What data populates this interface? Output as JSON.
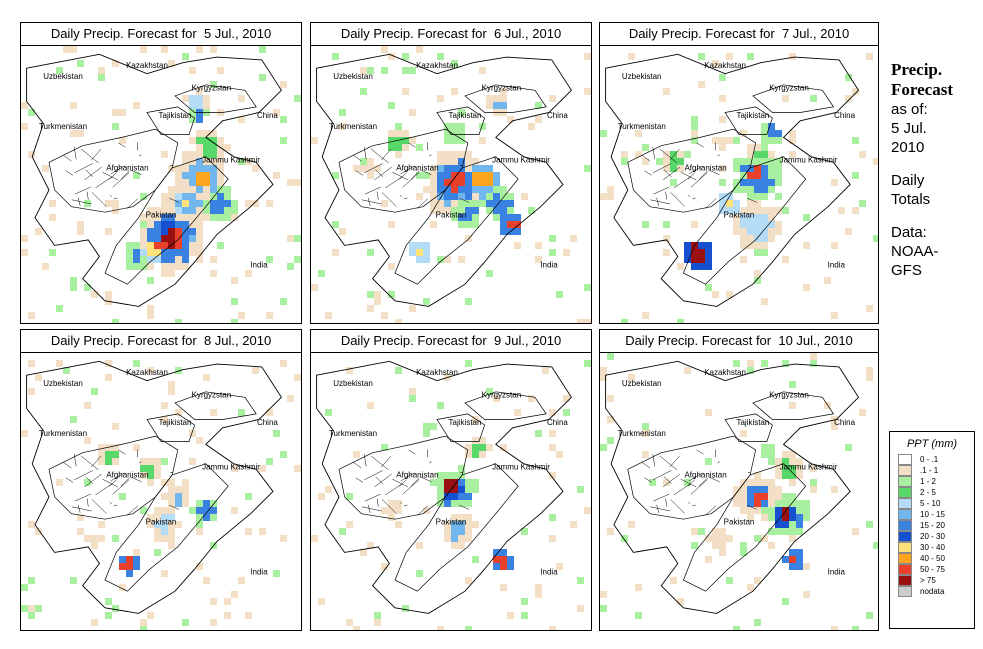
{
  "panels": [
    {
      "title": "Daily Precip. Forecast for  5 Jul., 2010",
      "blobs": [
        {
          "x": 62,
          "y": 18,
          "r": 1.4,
          "l": 4
        },
        {
          "x": 62,
          "y": 23,
          "r": 1.2,
          "l": 6
        },
        {
          "x": 63,
          "y": 45,
          "r": 3,
          "l": 5
        },
        {
          "x": 64,
          "y": 45,
          "r": 1.8,
          "l": 9
        },
        {
          "x": 58,
          "y": 55,
          "r": 2.6,
          "l": 5
        },
        {
          "x": 57,
          "y": 55,
          "r": 1.5,
          "l": 8
        },
        {
          "x": 53,
          "y": 68,
          "r": 4,
          "l": 5
        },
        {
          "x": 52,
          "y": 68,
          "r": 2.8,
          "l": 10
        },
        {
          "x": 52,
          "y": 67,
          "r": 1.6,
          "l": 11
        },
        {
          "x": 46,
          "y": 72,
          "r": 1.3,
          "l": 8
        },
        {
          "x": 40,
          "y": 74,
          "r": 1.4,
          "l": 6
        },
        {
          "x": 70,
          "y": 55,
          "r": 2,
          "l": 6
        },
        {
          "x": 66,
          "y": 35,
          "r": 2.2,
          "l": 3
        },
        {
          "x": 20,
          "y": 30,
          "r": 1.5,
          "l": 1
        },
        {
          "x": 30,
          "y": 55,
          "r": 1.5,
          "l": 1
        }
      ]
    },
    {
      "title": "Daily Precip. Forecast for  6 Jul., 2010",
      "blobs": [
        {
          "x": 66,
          "y": 20,
          "r": 1.5,
          "l": 5
        },
        {
          "x": 50,
          "y": 30,
          "r": 2.5,
          "l": 2
        },
        {
          "x": 50,
          "y": 48,
          "r": 4,
          "l": 5
        },
        {
          "x": 50,
          "y": 47,
          "r": 2.2,
          "l": 10
        },
        {
          "x": 60,
          "y": 47,
          "r": 1.8,
          "l": 9
        },
        {
          "x": 55,
          "y": 58,
          "r": 2,
          "l": 6
        },
        {
          "x": 66,
          "y": 55,
          "r": 2,
          "l": 6
        },
        {
          "x": 70,
          "y": 63,
          "r": 1.5,
          "l": 10
        },
        {
          "x": 38,
          "y": 72,
          "r": 1.3,
          "l": 8
        },
        {
          "x": 40,
          "y": 45,
          "r": 1.5,
          "l": 2
        },
        {
          "x": 20,
          "y": 42,
          "r": 1.8,
          "l": 1
        },
        {
          "x": 30,
          "y": 33,
          "r": 1.6,
          "l": 3
        }
      ]
    },
    {
      "title": "Daily Precip. Forecast for  7 Jul., 2010",
      "blobs": [
        {
          "x": 56,
          "y": 38,
          "r": 1.8,
          "l": 3
        },
        {
          "x": 55,
          "y": 45,
          "r": 3,
          "l": 6
        },
        {
          "x": 54,
          "y": 45,
          "r": 1.4,
          "l": 10
        },
        {
          "x": 45,
          "y": 55,
          "r": 1.3,
          "l": 8
        },
        {
          "x": 55,
          "y": 62,
          "r": 3,
          "l": 4
        },
        {
          "x": 34,
          "y": 73,
          "r": 1.8,
          "l": 11
        },
        {
          "x": 60,
          "y": 30,
          "r": 1.4,
          "l": 6
        },
        {
          "x": 42,
          "y": 33,
          "r": 1.8,
          "l": 1
        },
        {
          "x": 25,
          "y": 40,
          "r": 1.4,
          "l": 3
        }
      ]
    },
    {
      "title": "Daily Precip. Forecast for  8 Jul., 2010",
      "blobs": [
        {
          "x": 45,
          "y": 40,
          "r": 1.6,
          "l": 3
        },
        {
          "x": 55,
          "y": 50,
          "r": 1.6,
          "l": 5
        },
        {
          "x": 50,
          "y": 60,
          "r": 2,
          "l": 4
        },
        {
          "x": 65,
          "y": 55,
          "r": 1.5,
          "l": 6
        },
        {
          "x": 37,
          "y": 74,
          "r": 1.2,
          "l": 10
        },
        {
          "x": 25,
          "y": 65,
          "r": 1.5,
          "l": 1
        },
        {
          "x": 30,
          "y": 35,
          "r": 1.5,
          "l": 3
        }
      ]
    },
    {
      "title": "Daily Precip. Forecast for  9 Jul., 2010",
      "blobs": [
        {
          "x": 49,
          "y": 47,
          "r": 1.3,
          "l": 11
        },
        {
          "x": 50,
          "y": 48,
          "r": 2.6,
          "l": 6
        },
        {
          "x": 58,
          "y": 33,
          "r": 1.5,
          "l": 3
        },
        {
          "x": 52,
          "y": 62,
          "r": 2,
          "l": 5
        },
        {
          "x": 67,
          "y": 73,
          "r": 1.4,
          "l": 10
        },
        {
          "x": 28,
          "y": 55,
          "r": 2,
          "l": 1
        },
        {
          "x": 40,
          "y": 25,
          "r": 1.5,
          "l": 2
        }
      ]
    },
    {
      "title": "Daily Precip. Forecast for  10 Jul., 2010",
      "blobs": [
        {
          "x": 56,
          "y": 50,
          "r": 1.4,
          "l": 10
        },
        {
          "x": 55,
          "y": 50,
          "r": 2.6,
          "l": 5
        },
        {
          "x": 65,
          "y": 57,
          "r": 1.3,
          "l": 11
        },
        {
          "x": 66,
          "y": 57,
          "r": 2.6,
          "l": 6
        },
        {
          "x": 68,
          "y": 73,
          "r": 1.2,
          "l": 10
        },
        {
          "x": 66,
          "y": 40,
          "r": 1.8,
          "l": 3
        },
        {
          "x": 58,
          "y": 35,
          "r": 1.6,
          "l": 2
        },
        {
          "x": 40,
          "y": 65,
          "r": 2,
          "l": 1
        },
        {
          "x": 50,
          "y": 70,
          "r": 1.5,
          "l": 2
        }
      ]
    }
  ],
  "map_labels": [
    {
      "text": "Uzbekistan",
      "x": 15,
      "y": 12
    },
    {
      "text": "Kazakhstan",
      "x": 45,
      "y": 8
    },
    {
      "text": "Kyrgyzstan",
      "x": 68,
      "y": 16
    },
    {
      "text": "Tajikistan",
      "x": 55,
      "y": 26
    },
    {
      "text": "China",
      "x": 88,
      "y": 26
    },
    {
      "text": "Turkmenistan",
      "x": 15,
      "y": 30
    },
    {
      "text": "Jammu Kashmir",
      "x": 75,
      "y": 42
    },
    {
      "text": "Afghanistan",
      "x": 38,
      "y": 45
    },
    {
      "text": "Pakistan",
      "x": 50,
      "y": 62
    },
    {
      "text": "India",
      "x": 85,
      "y": 80
    }
  ],
  "legend": {
    "title": "PPT (mm)",
    "items": [
      {
        "label": "0 - .1",
        "color": "#ffffff"
      },
      {
        "label": ".1 - 1",
        "color": "#f2dfc6"
      },
      {
        "label": "1 - 2",
        "color": "#a8f0a0"
      },
      {
        "label": "2 - 5",
        "color": "#59d86a"
      },
      {
        "label": "5 - 10",
        "color": "#b5dcf7"
      },
      {
        "label": "10 - 15",
        "color": "#72b6ee"
      },
      {
        "label": "15 - 20",
        "color": "#3a82e2"
      },
      {
        "label": "20 - 30",
        "color": "#1450d0"
      },
      {
        "label": "30 - 40",
        "color": "#ffe27a"
      },
      {
        "label": "40 - 50",
        "color": "#ffa41e"
      },
      {
        "label": "50 - 75",
        "color": "#e8402a"
      },
      {
        "label": "> 75",
        "color": "#9a1010"
      },
      {
        "label": "nodata",
        "color": "#cccccc"
      }
    ]
  },
  "side": {
    "title_line1": "Precip.",
    "title_line2": "Forecast",
    "asof_1": "as of:",
    "asof_2": "5 Jul.",
    "asof_3": "2010",
    "daily_1": "Daily",
    "daily_2": "Totals",
    "data_1": "Data:",
    "data_2": "NOAA-",
    "data_3": "GFS"
  }
}
